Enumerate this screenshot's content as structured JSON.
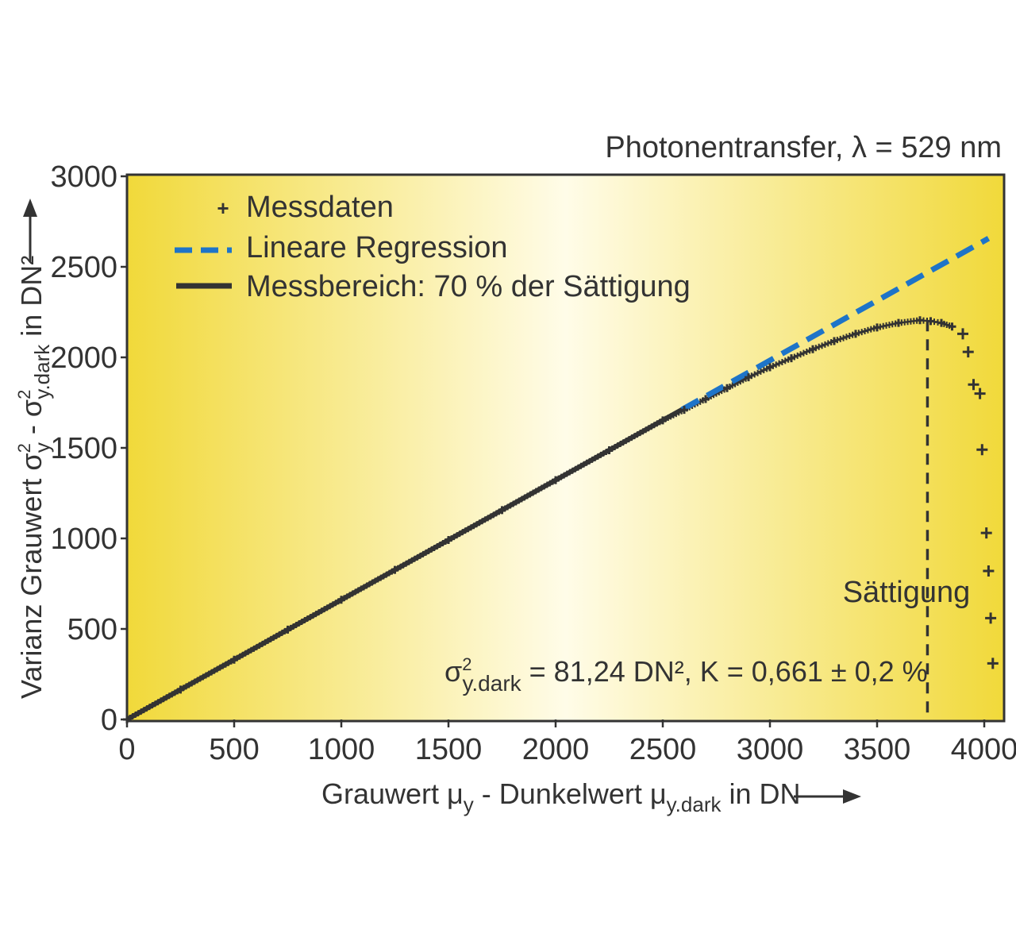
{
  "chart_data": {
    "type": "scatter",
    "title": "Photonentransfer, λ = 529 nm",
    "xlabel_parts": {
      "a": "Grauwert μ",
      "a_sub": "y",
      "b": " - Dunkelwert μ",
      "b_sub": "y.dark",
      "c": " in DN"
    },
    "ylabel_parts": {
      "a": "Varianz Grauwert σ",
      "a_sup": "2",
      "a_sub": "y",
      "b": " - σ",
      "b_sup": "2",
      "b_sub": "y.dark",
      "c": " in DN²"
    },
    "xlim": [
      0,
      4000
    ],
    "ylim": [
      0,
      3000
    ],
    "x_ticks": [
      "0",
      "500",
      "1000",
      "1500",
      "2000",
      "2500",
      "3000",
      "3500",
      "4000"
    ],
    "y_ticks": [
      "0",
      "500",
      "1000",
      "1500",
      "2000",
      "2500",
      "3000"
    ],
    "legend": {
      "position": "top-left",
      "entries": [
        "Messdaten",
        "Lineare Regression",
        "Messbereich: 70 % der Sättigung"
      ]
    },
    "series": [
      {
        "name": "Messdaten",
        "style": "plus",
        "x": [
          0,
          250,
          500,
          750,
          1000,
          1250,
          1500,
          1750,
          2000,
          2250,
          2500,
          2600,
          2700,
          2800,
          2900,
          3000,
          3100,
          3200,
          3300,
          3400,
          3500,
          3600,
          3700,
          3750,
          3800,
          3850,
          3900,
          3925,
          3950,
          3980,
          3990,
          4010,
          4020,
          4030,
          4040
        ],
        "y": [
          0,
          165,
          330,
          496,
          661,
          826,
          991,
          1156,
          1322,
          1487,
          1652,
          1710,
          1770,
          1830,
          1890,
          1945,
          1995,
          2045,
          2090,
          2130,
          2165,
          2190,
          2205,
          2200,
          2190,
          2170,
          2130,
          2030,
          1850,
          1800,
          1490,
          1030,
          820,
          560,
          310
        ]
      },
      {
        "name": "Lineare Regression",
        "style": "dashed",
        "x": [
          2590,
          4020
        ],
        "y": [
          1712,
          2657
        ]
      },
      {
        "name": "Messbereich: 70 % der Sättigung",
        "style": "solid",
        "x": [
          0,
          2590
        ],
        "y": [
          0,
          1712
        ]
      }
    ],
    "annotations": {
      "saturation_label": "Sättigung",
      "saturation_x": 3735,
      "params_sigma": "σ",
      "params_sup": "2",
      "params_sub": "y.dark",
      "params_rest": " = 81,24 DN², K = 0,661 ± 0,2 %"
    },
    "colors": {
      "background_edge": "#f1d93a",
      "background_center": "#fffce8",
      "regression": "#1e74c8",
      "data": "#333333"
    }
  }
}
